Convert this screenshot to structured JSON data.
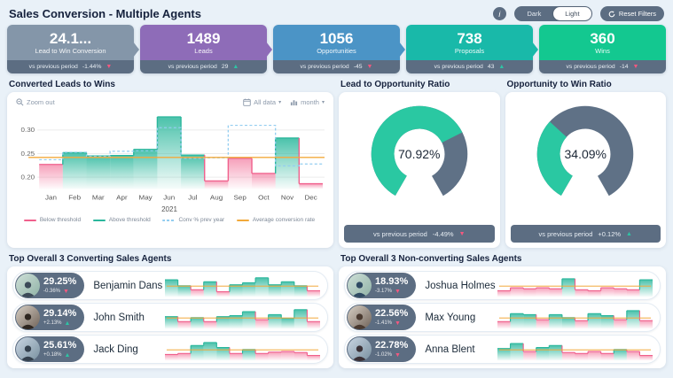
{
  "header": {
    "title": "Sales Conversion - Multiple Agents",
    "info_label": "i",
    "theme_toggle": {
      "dark": "Dark",
      "light": "Light",
      "selected": "Light"
    },
    "reset_label": "Reset Filters"
  },
  "kpis": [
    {
      "value": "24.1...",
      "label": "Lead to Win Conversion",
      "compare_label": "vs previous period",
      "delta": "-1.44%",
      "direction": "down",
      "color": "#8496a9"
    },
    {
      "value": "1489",
      "label": "Leads",
      "compare_label": "vs previous period",
      "delta": "29",
      "direction": "up",
      "color": "#8e6cb8"
    },
    {
      "value": "1056",
      "label": "Opportunities",
      "compare_label": "vs previous period",
      "delta": "-45",
      "direction": "down",
      "color": "#4b94c6"
    },
    {
      "value": "738",
      "label": "Proposals",
      "compare_label": "vs previous period",
      "delta": "43",
      "direction": "up",
      "color": "#19b9a9"
    },
    {
      "value": "360",
      "label": "Wins",
      "compare_label": "vs previous period",
      "delta": "-14",
      "direction": "down",
      "color": "#13c890"
    }
  ],
  "main_chart": {
    "title": "Converted Leads to Wins",
    "toolbar": {
      "zoom_out": "Zoom out",
      "range": "All data",
      "granularity": "month"
    },
    "chart_data": {
      "type": "area",
      "title": "Converted Leads to Wins",
      "categories": [
        "Jan",
        "Feb",
        "Mar",
        "Apr",
        "May",
        "Jun",
        "Jul",
        "Aug",
        "Sep",
        "Oct",
        "Nov",
        "Dec"
      ],
      "year_label": "2021",
      "series": [
        {
          "name": "Conversion rate",
          "values": [
            0.227,
            0.252,
            0.245,
            0.246,
            0.259,
            0.328,
            0.247,
            0.192,
            0.24,
            0.208,
            0.283,
            0.186
          ]
        },
        {
          "name": "Conv % prev year",
          "values": [
            0.237,
            0.253,
            0.244,
            0.255,
            0.256,
            0.305,
            0.24,
            0.241,
            0.31,
            0.31,
            0.224,
            0.228
          ]
        }
      ],
      "average": 0.242,
      "ylim": [
        0.175,
        0.34
      ],
      "yticks": [
        0.2,
        0.25,
        0.3
      ],
      "legend": [
        "Below threshold",
        "Above threshold",
        "Conv % prev year",
        "Average conversion rate"
      ],
      "legend_position": "bottom",
      "grid": true
    }
  },
  "gauges": [
    {
      "title": "Lead to Opportunity Ratio",
      "value": 70.92,
      "display": "70.92%",
      "compare_label": "vs previous period",
      "delta": "-4.49%",
      "direction": "down"
    },
    {
      "title": "Opportunity to Win Ratio",
      "value": 34.09,
      "display": "34.09%",
      "compare_label": "vs previous period",
      "delta": "+0.12%",
      "direction": "up"
    }
  ],
  "agent_panels": [
    {
      "title": "Top Overall 3 Converting Sales Agents",
      "agents": [
        {
          "name": "Benjamin Dans",
          "value": "29.25%",
          "delta": "-0.36%",
          "direction": "down",
          "spark": [
            0.85,
            0.55,
            0.35,
            0.75,
            0.25,
            0.6,
            0.7,
            0.95,
            0.6,
            0.75,
            0.55,
            0.3
          ]
        },
        {
          "name": "John Smith",
          "value": "29.14%",
          "delta": "+2.13%",
          "direction": "up",
          "spark": [
            0.6,
            0.35,
            0.55,
            0.35,
            0.6,
            0.65,
            0.85,
            0.45,
            0.7,
            0.52,
            0.95,
            0.35
          ]
        },
        {
          "name": "Jack Ding",
          "value": "25.61%",
          "delta": "+0.18%",
          "direction": "up",
          "spark": [
            0.3,
            0.35,
            0.75,
            0.9,
            0.65,
            0.35,
            0.55,
            0.35,
            0.42,
            0.45,
            0.4,
            0.25
          ]
        }
      ]
    },
    {
      "title": "Top Overall 3 Non-converting Sales Agents",
      "agents": [
        {
          "name": "Joshua Holmes",
          "value": "18.93%",
          "delta": "-3.17%",
          "direction": "down",
          "spark": [
            0.3,
            0.45,
            0.4,
            0.45,
            0.4,
            0.9,
            0.35,
            0.3,
            0.45,
            0.4,
            0.35,
            0.85
          ]
        },
        {
          "name": "Max Young",
          "value": "22.56%",
          "delta": "-1.41%",
          "direction": "down",
          "spark": [
            0.35,
            0.75,
            0.7,
            0.45,
            0.7,
            0.55,
            0.4,
            0.75,
            0.65,
            0.45,
            0.9,
            0.4
          ]
        },
        {
          "name": "Anna Blent",
          "value": "22.78%",
          "delta": "-1.02%",
          "direction": "down",
          "spark": [
            0.6,
            0.85,
            0.45,
            0.65,
            0.75,
            0.4,
            0.35,
            0.45,
            0.35,
            0.55,
            0.45,
            0.25
          ]
        }
      ]
    }
  ],
  "colors": {
    "above_threshold": "#2bb79c",
    "below_threshold": "#f0608c",
    "prev_year": "#93cdf0",
    "average_line": "#f2a93b",
    "gauge_fill": "#2ac8a2",
    "gauge_rest": "#5f7186",
    "footer_bar": "#5c6d82",
    "positive": "#2ec4a5",
    "negative": "#f4587f",
    "background": "#e9f1f8"
  }
}
